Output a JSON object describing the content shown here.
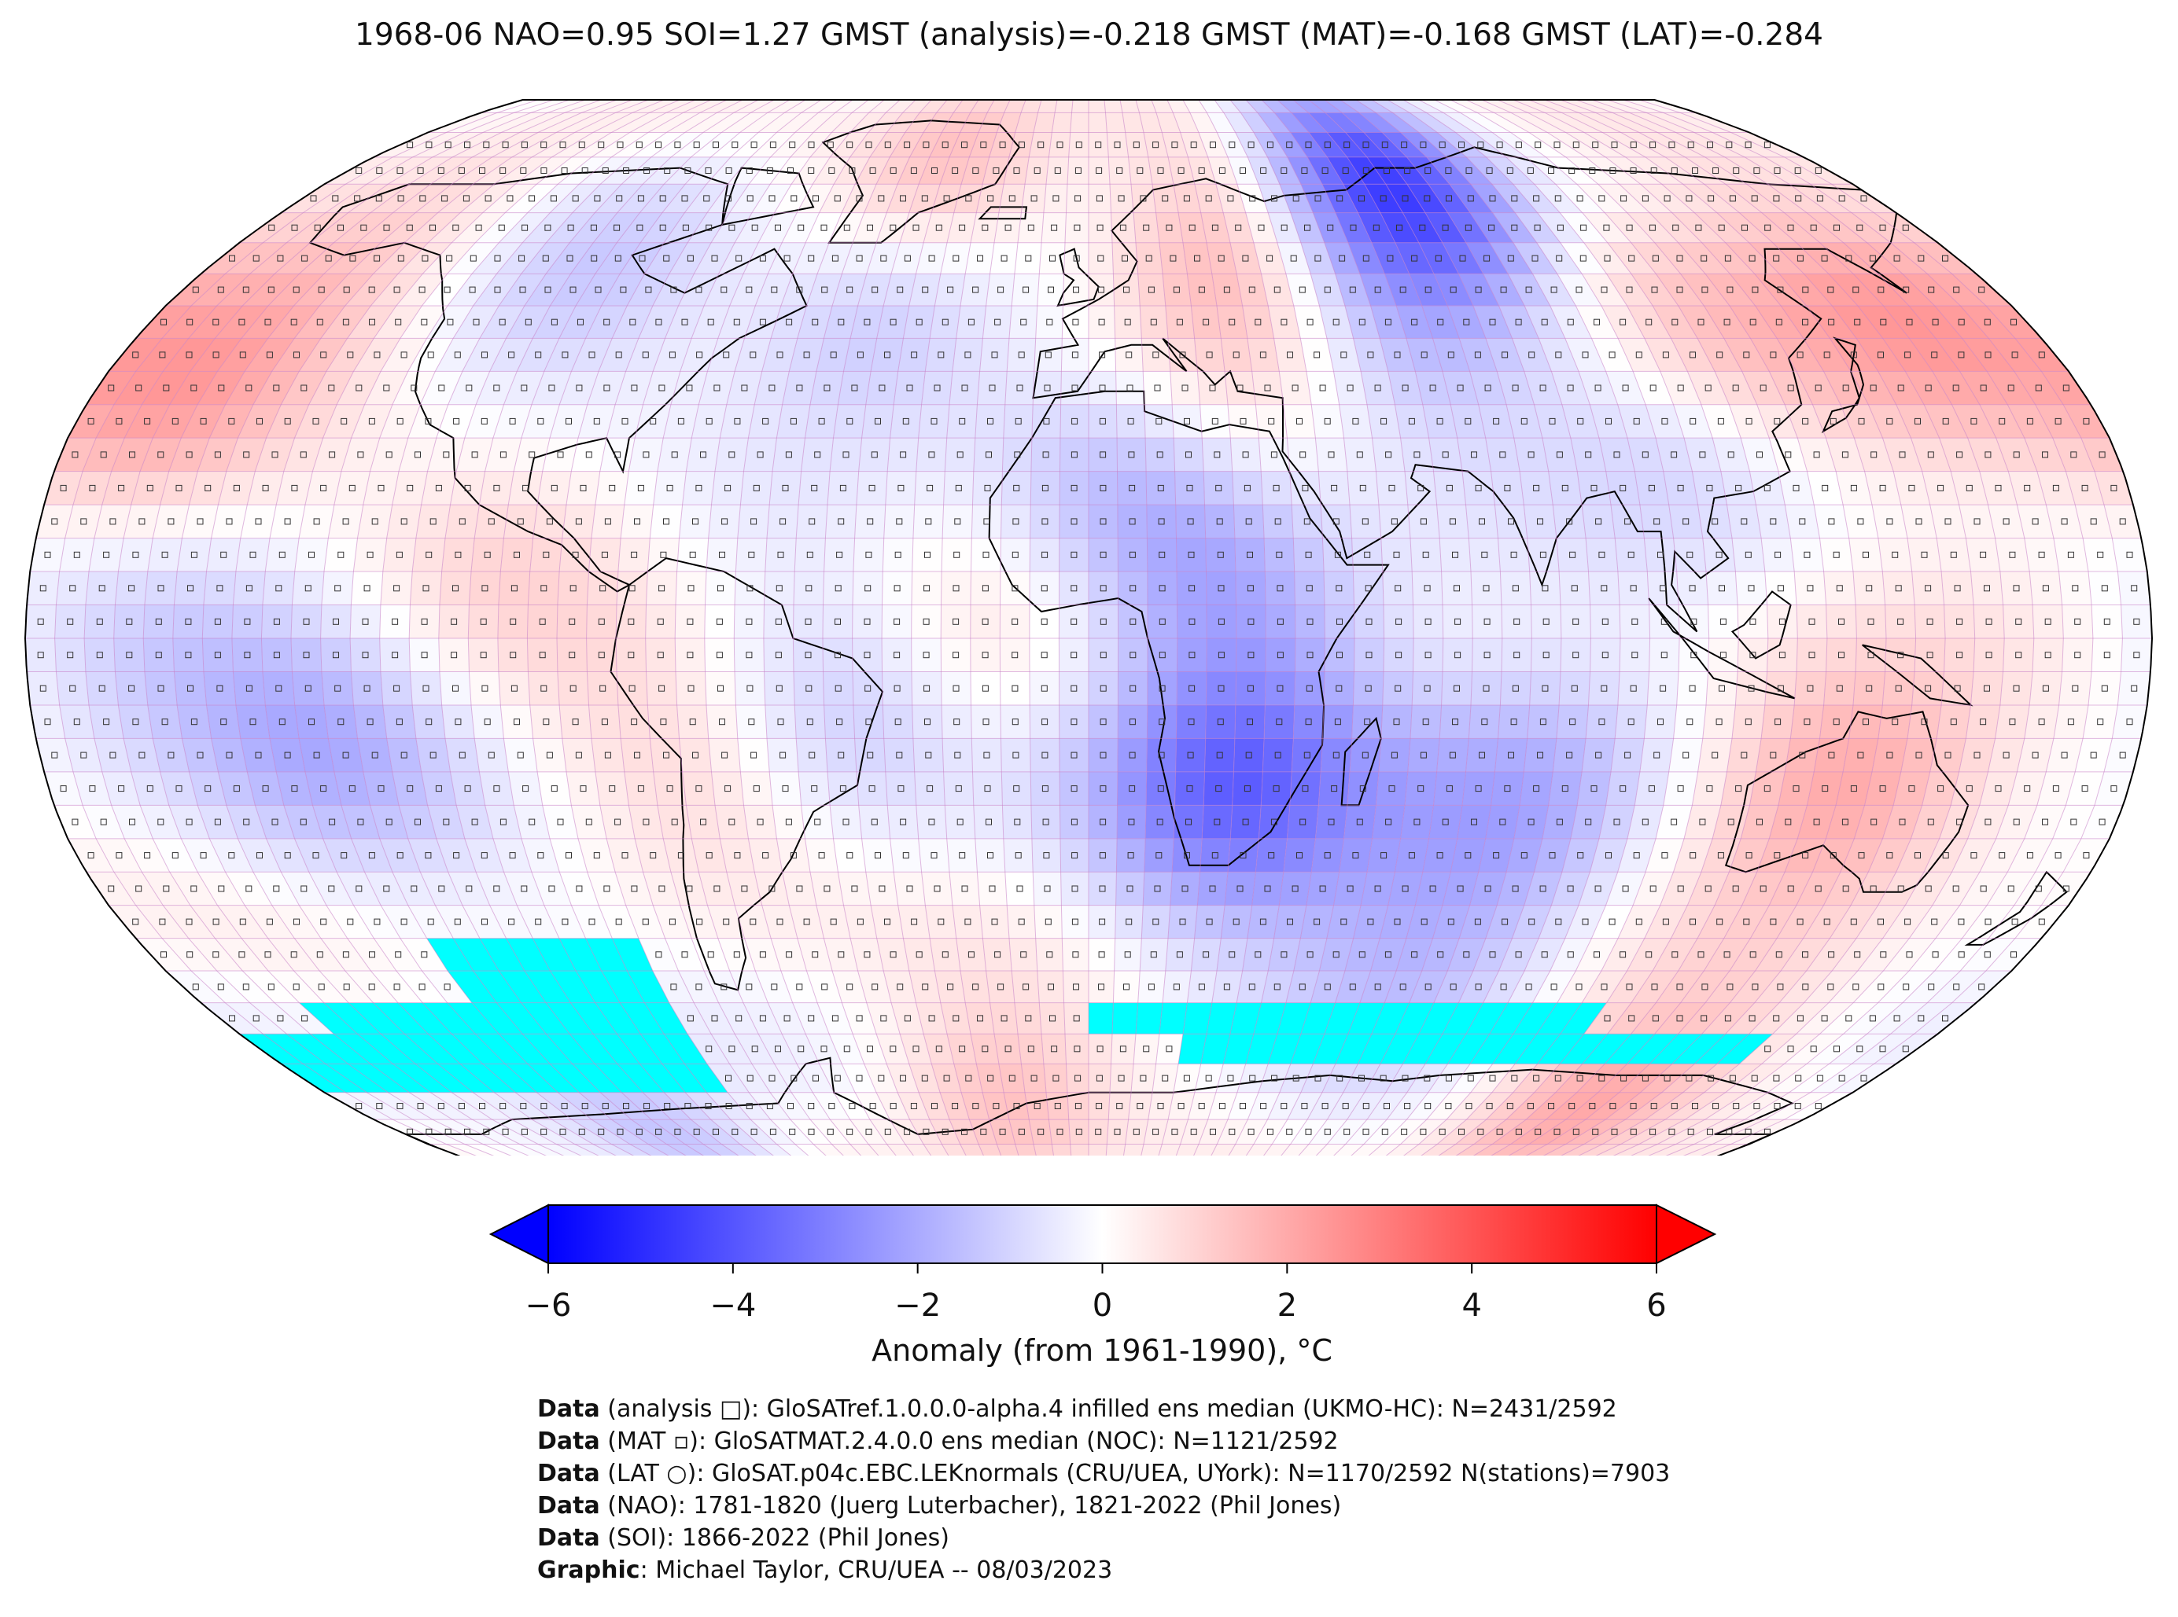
{
  "title": "1968-06 NAO=0.95 SOI=1.27 GMST (analysis)=-0.218 GMST (MAT)=-0.168 GMST (LAT)=-0.284",
  "map": {
    "projection": "robinson",
    "land_color": "#ffffff",
    "ocean_grid_color": "#c77fc7",
    "missing_color": "#00ffff",
    "grid_resolution_deg": 5,
    "anomaly_regions": [
      {
        "name": "north-pacific-warm",
        "lon": -165,
        "lat": 35,
        "value": 2.0
      },
      {
        "name": "alaska-warm",
        "lon": -150,
        "lat": 62,
        "value": 1.0
      },
      {
        "name": "canada-cool",
        "lon": -100,
        "lat": 55,
        "value": -1.2
      },
      {
        "name": "greenland-warm",
        "lon": -35,
        "lat": 72,
        "value": 1.8
      },
      {
        "name": "north-atlantic-cool",
        "lon": -40,
        "lat": 48,
        "value": -1.6
      },
      {
        "name": "east-europe-warm",
        "lon": 30,
        "lat": 55,
        "value": 2.0
      },
      {
        "name": "west-siberia-cold",
        "lon": 70,
        "lat": 70,
        "value": -4.5
      },
      {
        "name": "central-asia-cool",
        "lon": 55,
        "lat": 45,
        "value": -1.5
      },
      {
        "name": "east-asia-warm",
        "lon": 115,
        "lat": 45,
        "value": 1.8
      },
      {
        "name": "north-pacific-west-warm",
        "lon": 155,
        "lat": 48,
        "value": 2.2
      },
      {
        "name": "china-cool",
        "lon": 105,
        "lat": 30,
        "value": -1.5
      },
      {
        "name": "sahara-cool",
        "lon": 5,
        "lat": 22,
        "value": -1.5
      },
      {
        "name": "egypt-warm",
        "lon": 30,
        "lat": 25,
        "value": 1.5
      },
      {
        "name": "sahel-cool",
        "lon": 25,
        "lat": 12,
        "value": -2.2
      },
      {
        "name": "tropical-atlantic-warm",
        "lon": -15,
        "lat": 2,
        "value": 1.2
      },
      {
        "name": "southern-africa-cold",
        "lon": 25,
        "lat": -22,
        "value": -3.5
      },
      {
        "name": "indian-ocean-cool",
        "lon": 75,
        "lat": -25,
        "value": -2.0
      },
      {
        "name": "australia-warm",
        "lon": 130,
        "lat": -22,
        "value": 2.2
      },
      {
        "name": "south-america-warm",
        "lon": -62,
        "lat": -18,
        "value": 1.5
      },
      {
        "name": "brazil-cool",
        "lon": -45,
        "lat": -12,
        "value": -2.0
      },
      {
        "name": "south-pacific-cool",
        "lon": -130,
        "lat": -15,
        "value": -1.8
      },
      {
        "name": "east-pacific-warm",
        "lon": -100,
        "lat": 10,
        "value": 1.0
      },
      {
        "name": "tropical-pacific-cool",
        "lon": -160,
        "lat": 2,
        "value": -1.0
      },
      {
        "name": "antarctica-east-warm",
        "lon": 120,
        "lat": -72,
        "value": 2.0
      },
      {
        "name": "antarctica-west-cool",
        "lon": -110,
        "lat": -78,
        "value": -1.5
      },
      {
        "name": "weddell-warm",
        "lon": -20,
        "lat": -72,
        "value": 1.5
      },
      {
        "name": "south-indian-ocean-cool",
        "lon": 60,
        "lat": -50,
        "value": -1.2
      }
    ],
    "missing_zones": [
      {
        "lon_min": -125,
        "lon_max": -85,
        "lat_min": -70,
        "lat_max": -45
      },
      {
        "lon_min": -180,
        "lon_max": -125,
        "lat_min": -70,
        "lat_max": -60
      },
      {
        "lon_min": -160,
        "lon_max": -125,
        "lat_min": -60,
        "lat_max": -55
      },
      {
        "lon_min": 0,
        "lon_max": 105,
        "lat_min": -62,
        "lat_max": -57
      },
      {
        "lon_min": 20,
        "lon_max": 145,
        "lat_min": -65,
        "lat_max": -62
      },
      {
        "lon_min": 20,
        "lon_max": 40,
        "lat_min": -67,
        "lat_max": -65
      }
    ]
  },
  "colorbar": {
    "vmin": -6,
    "vmax": 6,
    "extend": "both",
    "cmap": [
      "#0000ff",
      "#ffffff",
      "#ff0000"
    ],
    "ticks": [
      -6,
      -4,
      -2,
      0,
      2,
      4,
      6
    ],
    "tick_labels": [
      "−6",
      "−4",
      "−2",
      "0",
      "2",
      "4",
      "6"
    ],
    "label": "Anomaly (from 1961-1990), °C"
  },
  "credits": [
    {
      "label": "Data",
      "text": " (analysis □): GloSATref.1.0.0.0-alpha.4 infilled ens median (UKMO-HC): N=2431/2592"
    },
    {
      "label": "Data",
      "text": " (MAT ▫): GloSATMAT.2.4.0.0 ens median (NOC): N=1121/2592"
    },
    {
      "label": "Data",
      "text": " (LAT ○): GloSAT.p04c.EBC.LEKnormals (CRU/UEA, UYork): N=1170/2592 N(stations)=7903"
    },
    {
      "label": "Data",
      "text": " (NAO): 1781-1820 (Juerg Luterbacher), 1821-2022 (Phil Jones)"
    },
    {
      "label": "Data",
      "text": " (SOI): 1866-2022 (Phil Jones)"
    },
    {
      "label": "Graphic",
      "text": ": Michael Taylor, CRU/UEA -- 08/03/2023"
    }
  ]
}
